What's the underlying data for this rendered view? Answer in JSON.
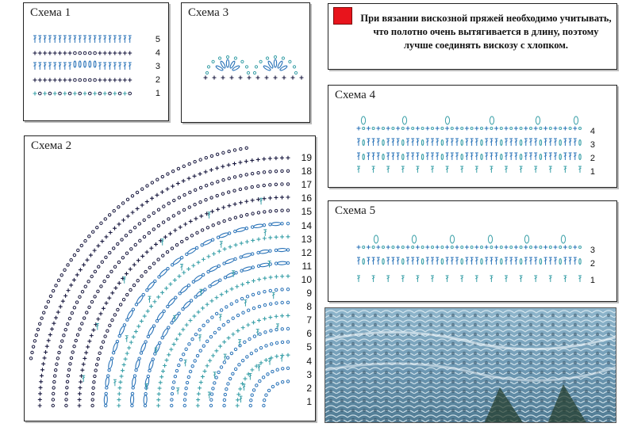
{
  "schemes": {
    "s1": {
      "title": "Схема 1",
      "rows": [
        "5",
        "4",
        "3",
        "2",
        "1"
      ]
    },
    "s2": {
      "title": "Схема 2",
      "rows": [
        "19",
        "18",
        "17",
        "16",
        "15",
        "14",
        "13",
        "12",
        "11",
        "10",
        "9",
        "8",
        "7",
        "6",
        "5",
        "4",
        "3",
        "2",
        "1"
      ]
    },
    "s3": {
      "title": "Схема 3"
    },
    "s4": {
      "title": "Схема  4",
      "rows": [
        "4",
        "3",
        "2",
        "1"
      ]
    },
    "s5": {
      "title": "Схема  5",
      "rows": [
        "3",
        "2",
        "1"
      ]
    }
  },
  "note": {
    "text": "При вязании вискозной пряжей необходимо учитывать, что полотно очень вытягивается в длину, поэтому лучше соединять вискозу с хлопком.",
    "marker_color": "#e8141c"
  },
  "colors": {
    "blue": "#2a73b8",
    "dark": "#1a1a40",
    "teal": "#3aa0a8"
  }
}
